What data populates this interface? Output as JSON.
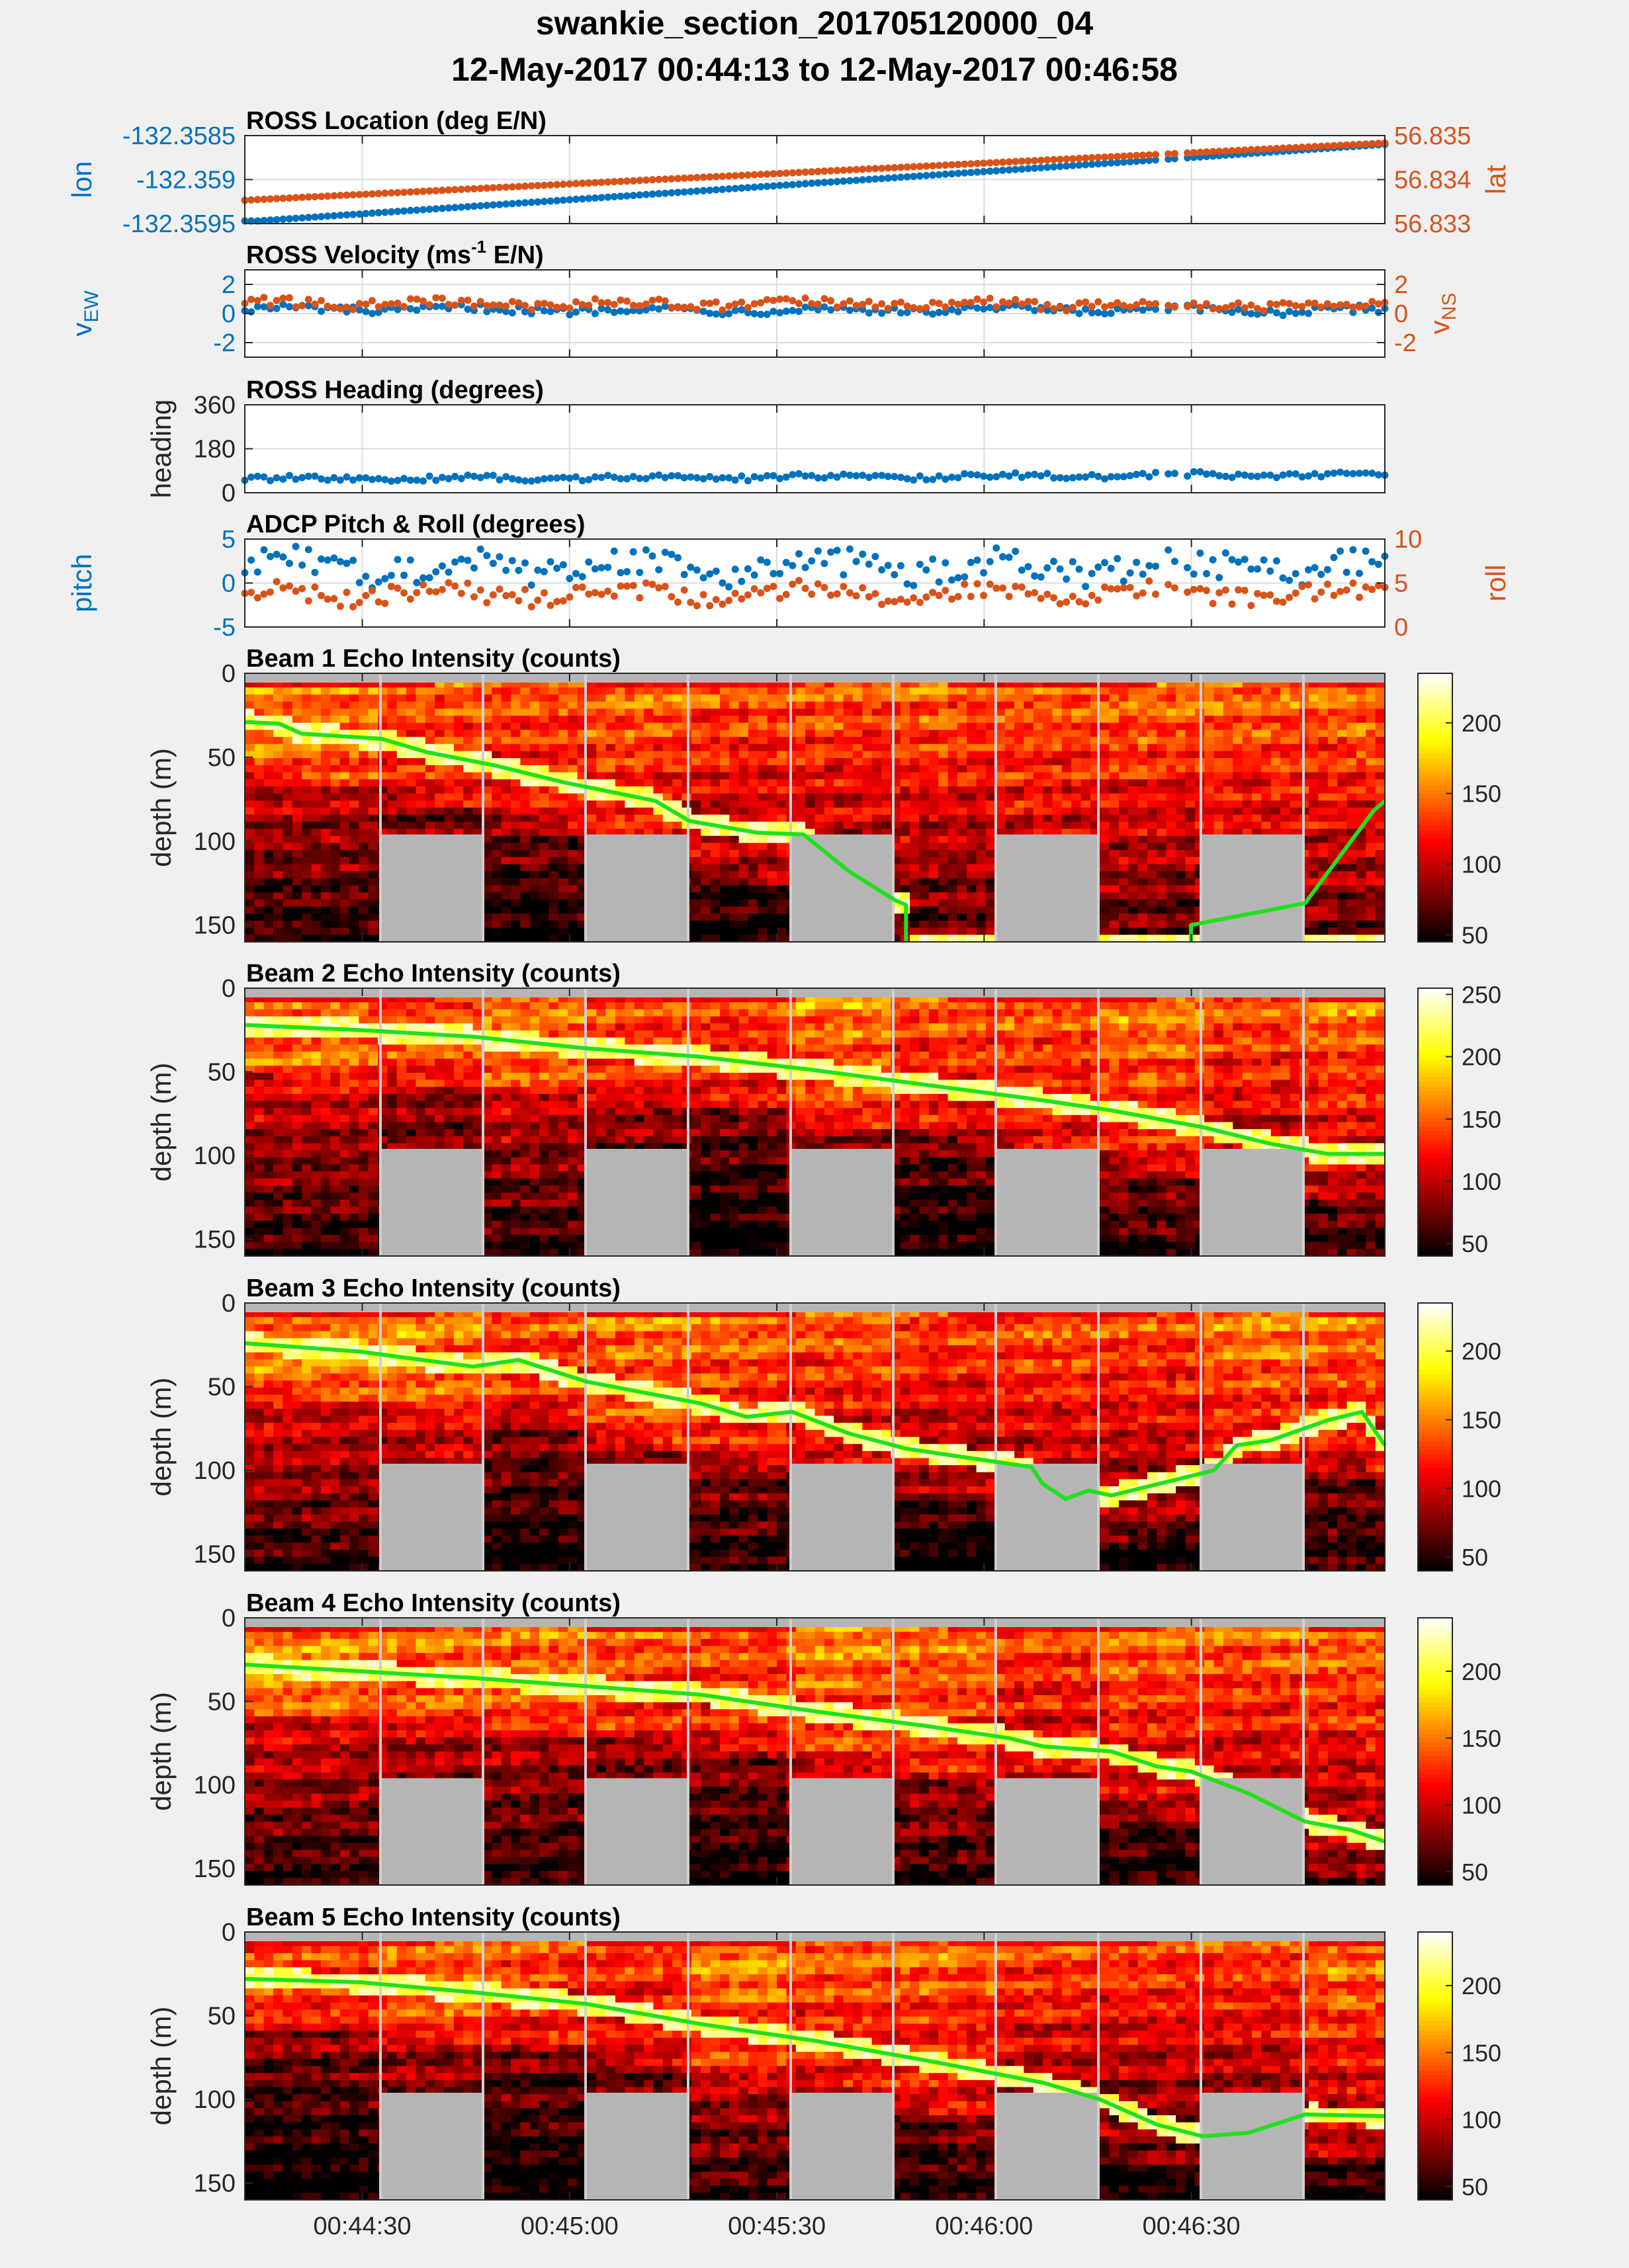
{
  "title": {
    "line1": "swankie_section_201705120000_04",
    "line2": "12-May-2017 00:44:13 to 12-May-2017 00:46:58"
  },
  "colors": {
    "blue": "#0072bd",
    "orange": "#d95319",
    "green": "#22e01d",
    "grid": "#dcdcdc",
    "gap": "#b5b5b5",
    "background": "#f0f0f0"
  },
  "x_axis": {
    "start": "00:44:13",
    "end": "00:46:58",
    "tick_labels": [
      "00:44:30",
      "00:45:00",
      "00:45:30",
      "00:46:00",
      "00:46:30"
    ]
  },
  "chart_data": [
    {
      "type": "scatter",
      "id": "location",
      "title": "ROSS Location (deg E/N)",
      "ylabel": "lon",
      "ylabel_right": "lat",
      "ylim": [
        -132.3595,
        -132.3585
      ],
      "ylim_right": [
        56.833,
        56.835
      ],
      "ytick_labels": [
        "-132.3585",
        "-132.359",
        "-132.3595"
      ],
      "ytick_labels_right": [
        "56.835",
        "56.834",
        "56.833"
      ],
      "series": [
        {
          "name": "lon",
          "axis": "left",
          "color": "#0072bd",
          "start": -132.35948,
          "end": -132.3586,
          "noise": 0
        },
        {
          "name": "lat",
          "axis": "right",
          "color": "#d95319",
          "start": 56.83353,
          "end": 56.83483,
          "noise": 0
        }
      ]
    },
    {
      "type": "scatter",
      "id": "velocity",
      "title": "ROSS Velocity (ms",
      "title_sup": "-1",
      "title_tail": " E/N)",
      "ylabel": "v",
      "ylabel_sub": "EW",
      "ylabel_right": "v",
      "ylabel_right_sub": "NS",
      "ylim": [
        -3,
        3
      ],
      "ylim_right": [
        -3,
        3
      ],
      "ytick_labels": [
        "2",
        "0",
        "-2"
      ],
      "ytick_labels_right": [
        "2",
        "0",
        "-2"
      ],
      "series": [
        {
          "name": "vEW",
          "axis": "left",
          "color": "#0072bd",
          "start": 0.3,
          "end": 0.2,
          "noise": 0.25
        },
        {
          "name": "vNS",
          "axis": "right",
          "color": "#d95319",
          "start": 0.7,
          "end": 0.6,
          "noise": 0.3
        }
      ]
    },
    {
      "type": "scatter",
      "id": "heading",
      "title": "ROSS Heading (degrees)",
      "ylabel": "heading",
      "ylim": [
        0,
        360
      ],
      "ytick_labels": [
        "360",
        "180",
        "0"
      ],
      "series": [
        {
          "name": "heading",
          "axis": "left",
          "color": "#0072bd",
          "start": 55,
          "end": 75,
          "noise": 10
        }
      ]
    },
    {
      "type": "scatter",
      "id": "pitchroll",
      "title": "ADCP Pitch & Roll (degrees)",
      "ylabel": "pitch",
      "ylabel_right": "roll",
      "ylim": [
        -5,
        5
      ],
      "ylim_right": [
        0,
        10
      ],
      "ytick_labels": [
        "5",
        "0",
        "-5"
      ],
      "ytick_labels_right": [
        "10",
        "5",
        "0"
      ],
      "series": [
        {
          "name": "pitch",
          "axis": "left",
          "color": "#0072bd",
          "start": 1.8,
          "end": 1.8,
          "noise": 1.6
        },
        {
          "name": "roll",
          "axis": "right",
          "color": "#d95319",
          "start": 3.8,
          "end": 3.8,
          "noise": 1.0
        }
      ]
    },
    {
      "type": "heatmap",
      "id": "beam1",
      "title": "Beam 1 Echo Intensity (counts)",
      "ylabel": "depth (m)",
      "ylim": [
        0,
        160
      ],
      "ytick_labels": [
        "0",
        "50",
        "100",
        "150"
      ],
      "colorbar_range": [
        45,
        235
      ],
      "colorbar_ticks": [
        "200",
        "150",
        "100",
        "50"
      ],
      "bottom_line": [
        [
          0,
          29
        ],
        [
          0.03,
          30
        ],
        [
          0.05,
          36
        ],
        [
          0.12,
          39
        ],
        [
          0.16,
          47
        ],
        [
          0.22,
          55
        ],
        [
          0.28,
          65
        ],
        [
          0.36,
          76
        ],
        [
          0.39,
          88
        ],
        [
          0.45,
          95
        ],
        [
          0.49,
          96
        ],
        [
          0.53,
          118
        ],
        [
          0.57,
          135
        ],
        [
          0.58,
          138
        ],
        [
          0.58,
          160
        ]
      ],
      "bottom_line_2": [
        [
          0.83,
          160
        ],
        [
          0.83,
          150
        ],
        [
          0.93,
          137
        ],
        [
          0.99,
          82
        ],
        [
          1.0,
          76
        ]
      ]
    },
    {
      "type": "heatmap",
      "id": "beam2",
      "title": "Beam 2 Echo Intensity (counts)",
      "ylabel": "depth (m)",
      "ylim": [
        0,
        160
      ],
      "ytick_labels": [
        "0",
        "50",
        "100",
        "150"
      ],
      "colorbar_range": [
        40,
        255
      ],
      "colorbar_ticks": [
        "250",
        "200",
        "150",
        "100",
        "50"
      ],
      "bottom_line": [
        [
          0,
          22
        ],
        [
          0.1,
          25
        ],
        [
          0.2,
          29
        ],
        [
          0.3,
          36
        ],
        [
          0.4,
          41
        ],
        [
          0.5,
          49
        ],
        [
          0.6,
          58
        ],
        [
          0.69,
          66
        ],
        [
          0.76,
          73
        ],
        [
          0.84,
          83
        ],
        [
          0.9,
          93
        ],
        [
          0.95,
          99
        ],
        [
          1.0,
          99
        ]
      ]
    },
    {
      "type": "heatmap",
      "id": "beam3",
      "title": "Beam 3 Echo Intensity (counts)",
      "ylabel": "depth (m)",
      "ylim": [
        0,
        160
      ],
      "ytick_labels": [
        "0",
        "50",
        "100",
        "150"
      ],
      "colorbar_range": [
        40,
        235
      ],
      "colorbar_ticks": [
        "200",
        "150",
        "100",
        "50"
      ],
      "bottom_line": [
        [
          0,
          24
        ],
        [
          0.1,
          29
        ],
        [
          0.2,
          38
        ],
        [
          0.24,
          34
        ],
        [
          0.3,
          47
        ],
        [
          0.4,
          60
        ],
        [
          0.44,
          68
        ],
        [
          0.48,
          65
        ],
        [
          0.53,
          78
        ],
        [
          0.58,
          87
        ],
        [
          0.66,
          95
        ],
        [
          0.69,
          98
        ],
        [
          0.7,
          108
        ],
        [
          0.72,
          117
        ],
        [
          0.74,
          112
        ],
        [
          0.76,
          115
        ],
        [
          0.85,
          100
        ],
        [
          0.87,
          85
        ],
        [
          0.9,
          82
        ],
        [
          0.95,
          70
        ],
        [
          0.98,
          65
        ],
        [
          1.0,
          85
        ]
      ]
    },
    {
      "type": "heatmap",
      "id": "beam4",
      "title": "Beam 4 Echo Intensity (counts)",
      "ylabel": "depth (m)",
      "ylim": [
        0,
        160
      ],
      "ytick_labels": [
        "0",
        "50",
        "100",
        "150"
      ],
      "colorbar_range": [
        40,
        240
      ],
      "colorbar_ticks": [
        "200",
        "150",
        "100",
        "50"
      ],
      "bottom_line": [
        [
          0,
          28
        ],
        [
          0.1,
          32
        ],
        [
          0.2,
          36
        ],
        [
          0.3,
          41
        ],
        [
          0.4,
          46
        ],
        [
          0.5,
          56
        ],
        [
          0.6,
          65
        ],
        [
          0.67,
          72
        ],
        [
          0.7,
          77
        ],
        [
          0.76,
          80
        ],
        [
          0.8,
          89
        ],
        [
          0.83,
          92
        ],
        [
          0.88,
          105
        ],
        [
          0.93,
          122
        ],
        [
          0.97,
          127
        ],
        [
          1.0,
          134
        ]
      ]
    },
    {
      "type": "heatmap",
      "id": "beam5",
      "title": "Beam 5 Echo Intensity (counts)",
      "ylabel": "depth (m)",
      "ylim": [
        0,
        160
      ],
      "ytick_labels": [
        "0",
        "50",
        "100",
        "150"
      ],
      "colorbar_range": [
        40,
        240
      ],
      "colorbar_ticks": [
        "200",
        "150",
        "100",
        "50"
      ],
      "bottom_line": [
        [
          0,
          28
        ],
        [
          0.1,
          30
        ],
        [
          0.2,
          36
        ],
        [
          0.3,
          43
        ],
        [
          0.4,
          55
        ],
        [
          0.5,
          65
        ],
        [
          0.6,
          77
        ],
        [
          0.7,
          90
        ],
        [
          0.75,
          100
        ],
        [
          0.8,
          115
        ],
        [
          0.84,
          122
        ],
        [
          0.88,
          120
        ],
        [
          0.93,
          109
        ],
        [
          1.0,
          110
        ]
      ]
    }
  ]
}
